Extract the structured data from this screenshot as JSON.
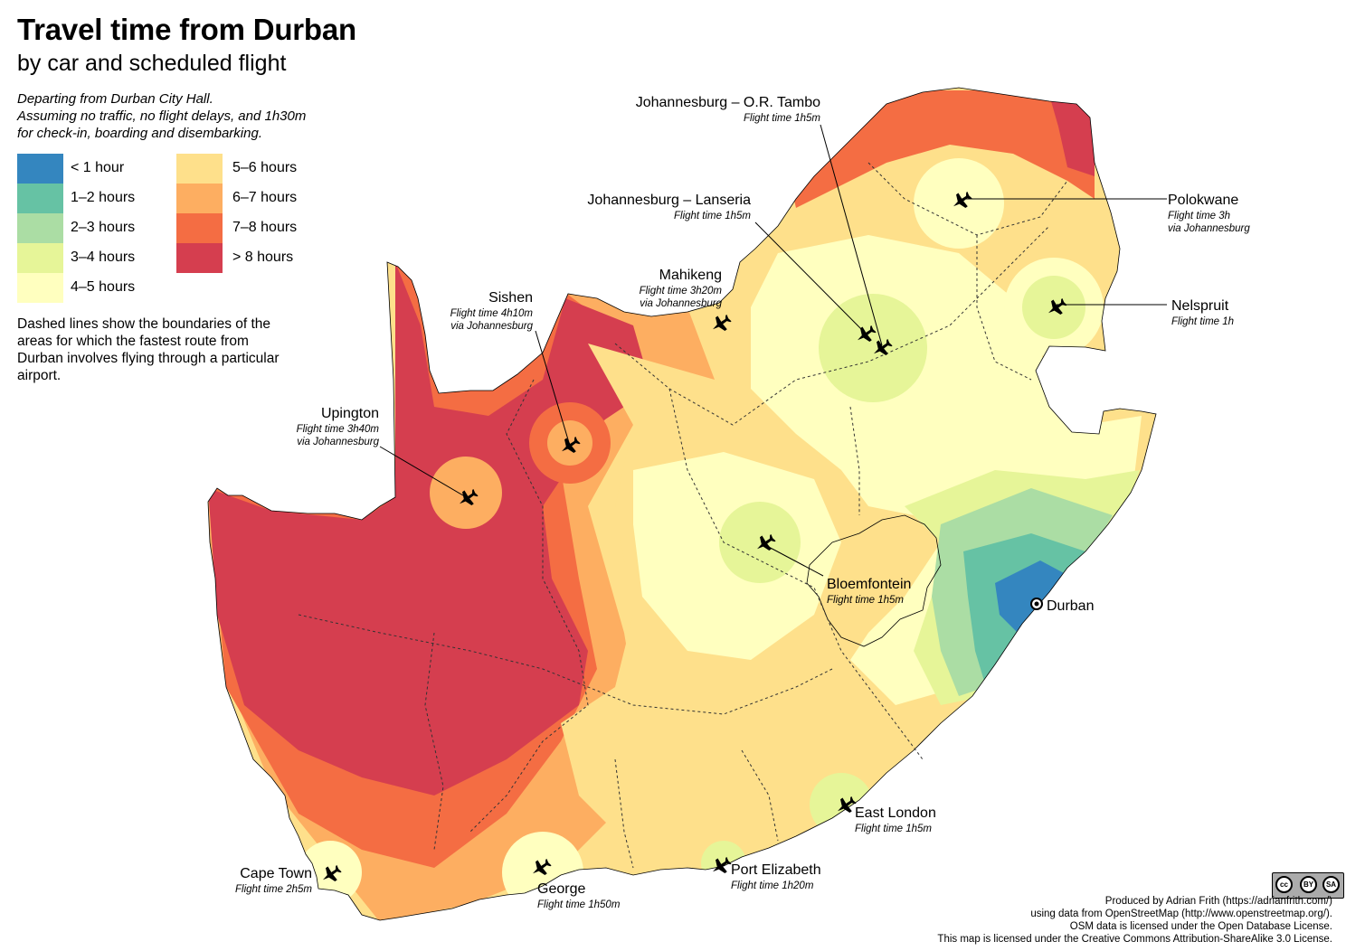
{
  "title": "Travel time from Durban",
  "subtitle": "by car and scheduled flight",
  "note_lines": [
    "Departing from Durban City Hall.",
    "Assuming no traffic, no flight delays, and 1h30m",
    "for check-in, boarding and disembarking."
  ],
  "legend": [
    {
      "label": "< 1 hour",
      "color": "#3486bf"
    },
    {
      "label": "1–2 hours",
      "color": "#66c2a4"
    },
    {
      "label": "2–3 hours",
      "color": "#abdda4"
    },
    {
      "label": "3–4 hours",
      "color": "#e6f598"
    },
    {
      "label": "4–5 hours",
      "color": "#ffffbf"
    },
    {
      "label": "5–6 hours",
      "color": "#fee08b"
    },
    {
      "label": "6–7 hours",
      "color": "#fdae61"
    },
    {
      "label": "7–8 hours",
      "color": "#f46d43"
    },
    {
      "label": "> 8 hours",
      "color": "#d53e4f"
    }
  ],
  "dashed_note": "Dashed lines show the boundaries of the areas for which the fastest route from Durban involves flying through a particular airport.",
  "airports": [
    {
      "name": "Johannesburg – O.R. Tambo",
      "flight": "Flight time 1h5m",
      "via": ""
    },
    {
      "name": "Johannesburg – Lanseria",
      "flight": "Flight time 1h5m",
      "via": ""
    },
    {
      "name": "Polokwane",
      "flight": "Flight time 3h",
      "via": "via Johannesburg"
    },
    {
      "name": "Nelspruit",
      "flight": "Flight time 1h",
      "via": ""
    },
    {
      "name": "Mahikeng",
      "flight": "Flight time 3h20m",
      "via": "via Johannesburg"
    },
    {
      "name": "Sishen",
      "flight": "Flight time 4h10m",
      "via": "via Johannesburg"
    },
    {
      "name": "Upington",
      "flight": "Flight time 3h40m",
      "via": "via Johannesburg"
    },
    {
      "name": "Bloemfontein",
      "flight": "Flight time 1h5m",
      "via": ""
    },
    {
      "name": "East London",
      "flight": "Flight time 1h5m",
      "via": ""
    },
    {
      "name": "Port Elizabeth",
      "flight": "Flight time 1h20m",
      "via": ""
    },
    {
      "name": "George",
      "flight": "Flight time 1h50m",
      "via": ""
    },
    {
      "name": "Cape Town",
      "flight": "Flight time 2h5m",
      "via": ""
    }
  ],
  "origin": "Durban",
  "credits": [
    "Produced by Adrian Frith (https://adrianfrith.com/)",
    "using data from OpenStreetMap (http://www.openstreetmap.org/).",
    "OSM data is licensed under the Open Database License.",
    "This map is licensed under the Creative Commons Attribution-ShareAlike 3.0 License."
  ],
  "license_badge": [
    "cc",
    "BY",
    "SA"
  ]
}
